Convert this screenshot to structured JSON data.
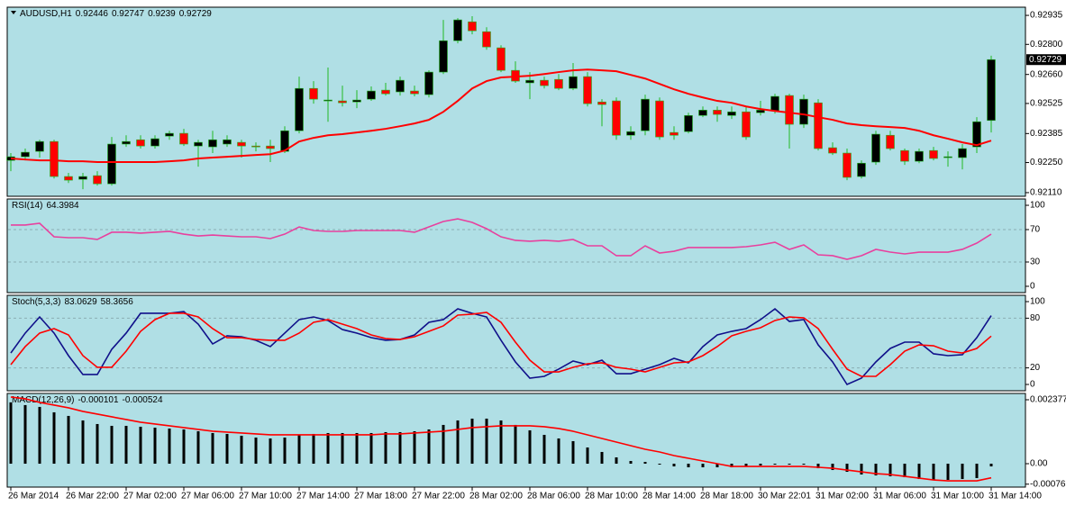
{
  "chart_data": [
    {
      "type": "candlestick",
      "title": "AUDUSD,H1",
      "categories": [
        "26 Mar 2014",
        null,
        null,
        null,
        "26 Mar 22:00",
        null,
        null,
        null,
        "27 Mar 02:00",
        null,
        null,
        null,
        "27 Mar 06:00",
        null,
        null,
        null,
        "27 Mar 10:00",
        null,
        null,
        null,
        "27 Mar 14:00",
        null,
        null,
        null,
        "27 Mar 18:00",
        null,
        null,
        null,
        "27 Mar 22:00",
        null,
        null,
        null,
        "28 Mar 02:00",
        null,
        null,
        null,
        "28 Mar 06:00",
        null,
        null,
        null,
        "28 Mar 10:00",
        null,
        null,
        null,
        "28 Mar 14:00",
        null,
        null,
        null,
        "28 Mar 18:00",
        null,
        null,
        null,
        "30 Mar 22:01",
        null,
        null,
        null,
        "31 Mar 02:00",
        null,
        null,
        null,
        "31 Mar 06:00",
        null,
        null,
        null,
        "31 Mar 10:00",
        null,
        null,
        null,
        "31 Mar 14:00"
      ],
      "open": [
        0.9226,
        0.92277,
        0.92302,
        0.92348,
        0.92185,
        0.92172,
        0.92189,
        0.92151,
        0.92336,
        0.92356,
        0.92327,
        0.92373,
        0.92386,
        0.92327,
        0.92323,
        0.92336,
        0.92344,
        0.92327,
        0.92327,
        0.92302,
        0.92398,
        0.92595,
        0.92537,
        0.92537,
        0.92532,
        0.92545,
        0.92587,
        0.92579,
        0.92583,
        0.92566,
        0.92671,
        0.92817,
        0.92905,
        0.92859,
        0.92784,
        0.92679,
        0.92621,
        0.92633,
        0.92637,
        0.92595,
        0.9265,
        0.92532,
        0.92537,
        0.92377,
        0.92398,
        0.92537,
        0.9239,
        0.92394,
        0.92469,
        0.92494,
        0.92469,
        0.92486,
        0.92482,
        0.9249,
        0.92562,
        0.92428,
        0.92528,
        0.92319,
        0.92294,
        0.92185,
        0.92252,
        0.92377,
        0.92306,
        0.92256,
        0.92306,
        0.92273,
        0.92273,
        0.92323,
        0.92446
      ],
      "high": [
        0.92294,
        0.92315,
        0.92356,
        0.92356,
        0.92202,
        0.92202,
        0.9221,
        0.92369,
        0.92377,
        0.92377,
        0.92377,
        0.92398,
        0.92407,
        0.92356,
        0.92398,
        0.92377,
        0.92356,
        0.92344,
        0.92356,
        0.92419,
        0.9265,
        0.92629,
        0.92692,
        0.92608,
        0.92587,
        0.92604,
        0.92621,
        0.9265,
        0.92608,
        0.92679,
        0.92914,
        0.92922,
        0.92931,
        0.9288,
        0.92796,
        0.92721,
        0.92671,
        0.9265,
        0.92662,
        0.92713,
        0.92671,
        0.92545,
        0.92553,
        0.92419,
        0.92566,
        0.92553,
        0.92419,
        0.92482,
        0.92511,
        0.92511,
        0.92511,
        0.92511,
        0.92537,
        0.9257,
        0.9257,
        0.92566,
        0.92545,
        0.92344,
        0.92315,
        0.9226,
        0.92398,
        0.92398,
        0.92315,
        0.92315,
        0.92323,
        0.92302,
        0.92336,
        0.92461,
        0.92747
      ],
      "low": [
        0.9221,
        0.9226,
        0.92273,
        0.92176,
        0.92155,
        0.92126,
        0.92143,
        0.92143,
        0.92323,
        0.92315,
        0.92315,
        0.92356,
        0.92327,
        0.92231,
        0.92294,
        0.92323,
        0.92273,
        0.92302,
        0.92252,
        0.92294,
        0.92386,
        0.92524,
        0.9244,
        0.92511,
        0.92503,
        0.92537,
        0.92562,
        0.92562,
        0.92558,
        0.92553,
        0.92662,
        0.92805,
        0.92847,
        0.92775,
        0.92671,
        0.92621,
        0.92545,
        0.92595,
        0.92587,
        0.92587,
        0.92511,
        0.92419,
        0.92356,
        0.92356,
        0.92377,
        0.92356,
        0.92356,
        0.92386,
        0.92461,
        0.9244,
        0.92453,
        0.92356,
        0.92469,
        0.92478,
        0.92315,
        0.92411,
        0.92306,
        0.92285,
        0.92168,
        0.92176,
        0.92239,
        0.92306,
        0.92239,
        0.92247,
        0.9226,
        0.92231,
        0.92218,
        0.92294,
        0.9239
      ],
      "close": [
        0.92277,
        0.92298,
        0.92348,
        0.92185,
        0.92168,
        0.92185,
        0.92151,
        0.92336,
        0.92348,
        0.92327,
        0.92361,
        0.92386,
        0.92336,
        0.92344,
        0.92356,
        0.92356,
        0.92327,
        0.92323,
        0.92315,
        0.92398,
        0.92595,
        0.92545,
        0.92541,
        0.92528,
        0.92541,
        0.92583,
        0.9257,
        0.92633,
        0.9257,
        0.92671,
        0.92817,
        0.92914,
        0.92863,
        0.92788,
        0.92679,
        0.92629,
        0.92633,
        0.92608,
        0.92595,
        0.9265,
        0.92524,
        0.9252,
        0.92377,
        0.92394,
        0.92545,
        0.92369,
        0.92377,
        0.92469,
        0.92494,
        0.92474,
        0.92486,
        0.92369,
        0.92494,
        0.92558,
        0.92428,
        0.92545,
        0.92315,
        0.92294,
        0.92181,
        0.92247,
        0.92382,
        0.92315,
        0.92256,
        0.92302,
        0.92269,
        0.92277,
        0.92315,
        0.9244,
        0.92729
      ],
      "up_color": "#000000",
      "down_color": "#ff0000",
      "wick_color": "#22b822",
      "overlay": {
        "color": "#ff0000",
        "values": [
          0.92269,
          0.92264,
          0.9226,
          0.9226,
          0.92256,
          0.92256,
          0.92252,
          0.92252,
          0.92252,
          0.92252,
          0.92252,
          0.92256,
          0.9226,
          0.92269,
          0.92273,
          0.92277,
          0.92281,
          0.92285,
          0.92289,
          0.92306,
          0.92348,
          0.92365,
          0.92377,
          0.92382,
          0.9239,
          0.92398,
          0.92407,
          0.92419,
          0.92432,
          0.92449,
          0.92486,
          0.92537,
          0.92595,
          0.92629,
          0.92646,
          0.9265,
          0.92654,
          0.92662,
          0.92671,
          0.92679,
          0.92683,
          0.92679,
          0.92675,
          0.92658,
          0.92641,
          0.92616,
          0.92591,
          0.9257,
          0.92553,
          0.92537,
          0.92528,
          0.92511,
          0.92499,
          0.9249,
          0.92482,
          0.92474,
          0.92461,
          0.92449,
          0.92432,
          0.92424,
          0.92419,
          0.92415,
          0.92411,
          0.92398,
          0.92377,
          0.92361,
          0.92344,
          0.92331,
          0.92352
        ]
      },
      "ylim": [
        0.92093,
        0.92973
      ],
      "yticks": [
        {
          "value": 0.9211,
          "label": "0.92110"
        },
        {
          "value": 0.9225,
          "label": "0.92250"
        },
        0.92385,
        0.92525,
        {
          "value": 0.9266,
          "label": "0.92660"
        },
        {
          "value": 0.928,
          "label": "0.92800"
        },
        0.92935
      ]
    },
    {
      "type": "line",
      "title": "RSI(14)",
      "series": [
        {
          "color": "#e8409e",
          "values": [
            75.6,
            75.6,
            77.8,
            61.1,
            60.0,
            60.0,
            57.8,
            66.7,
            66.7,
            65.6,
            66.7,
            67.8,
            64.4,
            62.2,
            63.3,
            62.2,
            61.1,
            61.1,
            58.9,
            64.4,
            73.3,
            68.9,
            67.8,
            67.8,
            68.9,
            68.9,
            68.9,
            68.9,
            66.7,
            73.3,
            80.0,
            83.3,
            78.9,
            71.1,
            61.1,
            56.7,
            55.6,
            56.7,
            55.6,
            57.8,
            50.0,
            50.0,
            37.8,
            37.8,
            50.0,
            41.1,
            43.3,
            47.8,
            47.8,
            47.8,
            47.8,
            48.9,
            51.1,
            54.4,
            45.6,
            51.1,
            38.9,
            37.8,
            33.3,
            37.8,
            45.6,
            42.2,
            40.0,
            42.2,
            42.2,
            42.2,
            45.6,
            53.3,
            64.3984
          ]
        }
      ],
      "ylim": [
        -7.8,
        107.8
      ],
      "yticks": [
        0,
        30,
        70,
        100
      ],
      "levels": [
        30,
        70
      ]
    },
    {
      "type": "line",
      "title": "Stoch(5,3,3)",
      "series": [
        {
          "color": "#10108a",
          "values": [
            38.0,
            62.0,
            81.5,
            62.0,
            34.8,
            12.0,
            12.0,
            42.4,
            62.0,
            85.9,
            85.9,
            85.9,
            88.0,
            72.8,
            48.9,
            58.7,
            57.6,
            53.3,
            45.7,
            62.0,
            78.3,
            81.5,
            77.2,
            66.3,
            62.0,
            56.5,
            53.3,
            54.3,
            59.8,
            75.0,
            78.3,
            91.3,
            85.9,
            81.5,
            53.3,
            27.2,
            7.6,
            9.8,
            18.5,
            28.3,
            23.9,
            29.3,
            13.0,
            13.0,
            18.5,
            23.9,
            31.5,
            26.1,
            45.7,
            59.8,
            64.1,
            67.4,
            78.3,
            91.3,
            76.1,
            78.3,
            47.8,
            27.2,
            0,
            7.6,
            27.2,
            43.5,
            51.1,
            51.1,
            37.0,
            34.8,
            35.9,
            56.5,
            83.0629
          ]
        },
        {
          "color": "#ff0000",
          "values": [
            23.9,
            45.7,
            62.0,
            67.4,
            59.8,
            34.8,
            20.7,
            20.7,
            40.2,
            64.1,
            78.3,
            85.9,
            85.9,
            81.5,
            67.4,
            56.5,
            56.5,
            54.3,
            53.3,
            53.3,
            62.0,
            75.0,
            78.3,
            72.8,
            67.4,
            59.8,
            55.4,
            54.3,
            57.6,
            64.1,
            70.7,
            83.7,
            84.8,
            87.0,
            75.0,
            51.1,
            29.3,
            15.2,
            15.2,
            20.7,
            25.0,
            26.1,
            20.7,
            18.5,
            15.2,
            20.7,
            26.1,
            27.2,
            34.8,
            45.7,
            58.7,
            64.1,
            68.5,
            77.2,
            81.5,
            80.4,
            67.4,
            42.4,
            18.5,
            9.8,
            9.8,
            23.9,
            40.2,
            47.8,
            46.7,
            40.2,
            38.0,
            43.5,
            58.3656
          ]
        }
      ],
      "ylim": [
        -7.6,
        107.6
      ],
      "yticks": [
        0,
        20,
        80,
        100
      ],
      "levels": [
        20,
        80
      ]
    },
    {
      "type": "bar",
      "title": "MACD(12,26,9)",
      "color": "#000000",
      "values": [
        0.00228,
        0.002178,
        0.002111,
        0.00191,
        0.001776,
        0.001608,
        0.001474,
        0.001407,
        0.001407,
        0.001374,
        0.00134,
        0.001307,
        0.001273,
        0.001206,
        0.001139,
        0.001106,
        0.001039,
        0.000972,
        0.000938,
        0.000972,
        0.001072,
        0.001106,
        0.001139,
        0.001139,
        0.001139,
        0.001139,
        0.001173,
        0.001173,
        0.001206,
        0.001273,
        0.001441,
        0.001608,
        0.001675,
        0.001675,
        0.001608,
        0.001441,
        0.00124,
        0.001072,
        0.000938,
        0.000838,
        0.000603,
        0.000436,
        0.000235,
        0.000101,
        6.7e-05,
        -3.4e-05,
        -0.000101,
        -0.000134,
        -0.000134,
        -0.000134,
        -0.000134,
        -0.000101,
        -6.7e-05,
        -3.4e-05,
        -3.4e-05,
        -3.4e-05,
        -0.000168,
        -0.000235,
        -0.000302,
        -0.000402,
        -0.000436,
        -0.000469,
        -0.000503,
        -0.00057,
        -0.000603,
        -0.000603,
        -0.00057,
        -0.000536,
        -0.000101
      ],
      "series": [
        {
          "color": "#ff0000",
          "values": [
            0.002479,
            0.002412,
            0.002278,
            0.002178,
            0.002077,
            0.001943,
            0.001843,
            0.001742,
            0.001642,
            0.001541,
            0.001474,
            0.001407,
            0.00134,
            0.001273,
            0.001206,
            0.001173,
            0.001139,
            0.001106,
            0.001072,
            0.001072,
            0.001072,
            0.001072,
            0.001072,
            0.001072,
            0.001072,
            0.001072,
            0.001106,
            0.001106,
            0.001139,
            0.001173,
            0.001206,
            0.001273,
            0.00134,
            0.001374,
            0.001407,
            0.001407,
            0.001407,
            0.001374,
            0.001307,
            0.001206,
            0.001072,
            0.000938,
            0.000804,
            0.00067,
            0.000536,
            0.000436,
            0.000302,
            0.000201,
            0.000101,
            0,
            -0.000101,
            -0.000101,
            -0.000101,
            -0.000101,
            -0.000101,
            -0.000101,
            -0.000134,
            -0.000168,
            -0.000235,
            -0.000302,
            -0.000369,
            -0.000402,
            -0.000469,
            -0.000536,
            -0.000603,
            -0.000637,
            -0.000637,
            -0.000637,
            -0.000524
          ]
        }
      ],
      "ylim": [
        -0.00087,
        0.002611
      ],
      "yticks": [
        -0.000761,
        {
          "value": 0,
          "label": "0.00"
        },
        0.002377
      ]
    }
  ]
}
